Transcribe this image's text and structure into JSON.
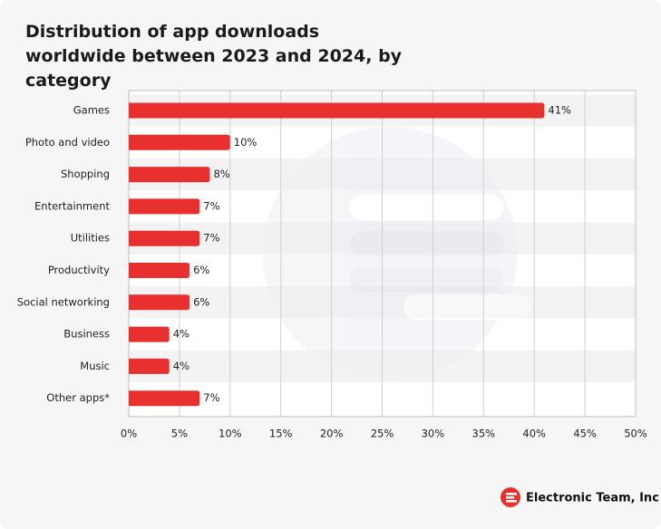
{
  "chart_data": {
    "type": "hbar",
    "title": "Distribution of app downloads worldwide between 2023 and 2024, by category",
    "categories": [
      "Games",
      "Photo and video",
      "Shopping",
      "Entertainment",
      "Utilities",
      "Productivity",
      "Social networking",
      "Business",
      "Music",
      "Other apps*"
    ],
    "values": [
      41,
      10,
      8,
      7,
      7,
      6,
      6,
      4,
      4,
      7
    ],
    "value_labels": [
      "41%",
      "10%",
      "8%",
      "7%",
      "7%",
      "6%",
      "6%",
      "4%",
      "4%",
      "7%"
    ],
    "color": "#e8302f",
    "xlim": [
      0,
      50
    ],
    "xticks": [
      {
        "value": 0,
        "label": "0%"
      },
      {
        "value": 5,
        "label": "5%"
      },
      {
        "value": 10,
        "label": "10%"
      },
      {
        "value": 15,
        "label": "15%"
      },
      {
        "value": 20,
        "label": "20%"
      },
      {
        "value": 25,
        "label": "25%"
      },
      {
        "value": 30,
        "label": "30%"
      },
      {
        "value": 35,
        "label": "35%"
      },
      {
        "value": 40,
        "label": "40%"
      },
      {
        "value": 45,
        "label": "45%"
      },
      {
        "value": 50,
        "label": "50%"
      }
    ],
    "grid": true
  },
  "footer": {
    "brand": "Electronic Team, Inc"
  }
}
